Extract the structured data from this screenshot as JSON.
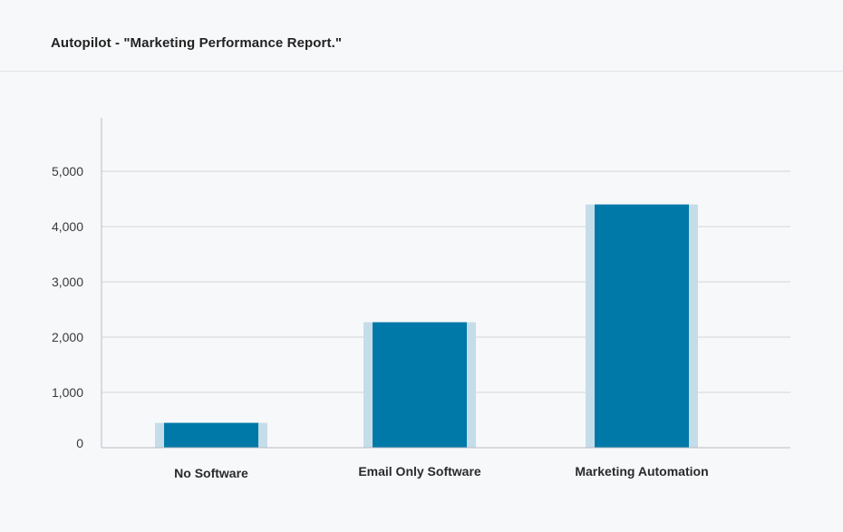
{
  "header": {
    "title": "Autopilot - \"Marketing Performance Report.\""
  },
  "chart_data": {
    "type": "bar",
    "title": "",
    "xlabel": "",
    "ylabel": "",
    "categories": [
      "No Software",
      "Email Only Software",
      "Marketing Automation"
    ],
    "values": [
      450,
      2270,
      4400
    ],
    "ylim": [
      0,
      6000
    ],
    "yticks": [
      0,
      1000,
      2000,
      3000,
      4000,
      5000
    ],
    "ytick_labels": [
      "0",
      "1,000",
      "2,000",
      "3,000",
      "4,000",
      "5,000"
    ],
    "grid": true,
    "legend": "none",
    "colors": {
      "bar": "#0079a9",
      "bar_halo": "#c5dde9",
      "grid": "#d3d6db",
      "axis": "#b9bcc2"
    }
  }
}
